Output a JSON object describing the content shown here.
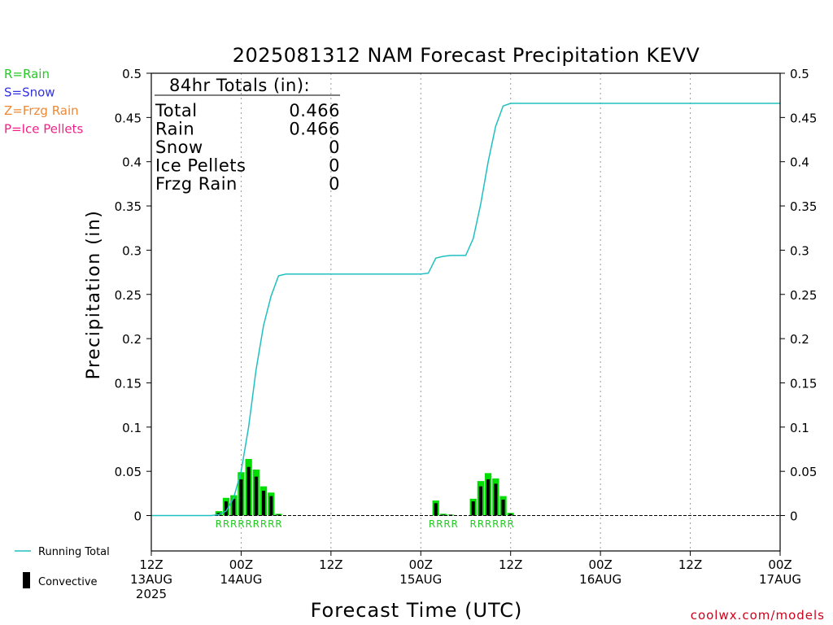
{
  "chart_data": {
    "type": "bar+line",
    "title": "2025081312 NAM Forecast Precipitation KEVV",
    "ylabel": "Precipitation (in)",
    "xlabel": "Forecast Time (UTC)",
    "ylim": [
      -0.04,
      0.5
    ],
    "xlim_hours": [
      0,
      84
    ],
    "y_ticks": [
      0,
      0.05,
      0.1,
      0.15,
      0.2,
      0.25,
      0.3,
      0.35,
      0.4,
      0.45,
      0.5
    ],
    "y_tick_labels": [
      "0",
      "0.05",
      "0.1",
      "0.15",
      "0.2",
      "0.25",
      "0.3",
      "0.35",
      "0.4",
      "0.45",
      "0.5"
    ],
    "x_ticks": [
      {
        "hour": 0,
        "line1": "12Z",
        "line2": "13AUG",
        "line3": "2025"
      },
      {
        "hour": 12,
        "line1": "00Z",
        "line2": "14AUG",
        "line3": ""
      },
      {
        "hour": 24,
        "line1": "12Z",
        "line2": "",
        "line3": ""
      },
      {
        "hour": 36,
        "line1": "00Z",
        "line2": "15AUG",
        "line3": ""
      },
      {
        "hour": 48,
        "line1": "12Z",
        "line2": "",
        "line3": ""
      },
      {
        "hour": 60,
        "line1": "00Z",
        "line2": "16AUG",
        "line3": ""
      },
      {
        "hour": 72,
        "line1": "12Z",
        "line2": "",
        "line3": ""
      },
      {
        "hour": 84,
        "line1": "00Z",
        "line2": "17AUG",
        "line3": ""
      }
    ],
    "gridlines": "vertical dotted",
    "series": [
      {
        "name": "Running Total",
        "kind": "line",
        "color": "#20c0c0",
        "points": [
          [
            0,
            0
          ],
          [
            8,
            0
          ],
          [
            9,
            0.001
          ],
          [
            10,
            0.005
          ],
          [
            11,
            0.02
          ],
          [
            12,
            0.05
          ],
          [
            13,
            0.1
          ],
          [
            14,
            0.165
          ],
          [
            15,
            0.215
          ],
          [
            16,
            0.248
          ],
          [
            17,
            0.271
          ],
          [
            18,
            0.273
          ],
          [
            21,
            0.273
          ],
          [
            24,
            0.273
          ],
          [
            30,
            0.273
          ],
          [
            36,
            0.273
          ],
          [
            37,
            0.274
          ],
          [
            38,
            0.291
          ],
          [
            39,
            0.293
          ],
          [
            40,
            0.294
          ],
          [
            42,
            0.294
          ],
          [
            43,
            0.313
          ],
          [
            44,
            0.352
          ],
          [
            45,
            0.4
          ],
          [
            46,
            0.44
          ],
          [
            47,
            0.463
          ],
          [
            48,
            0.466
          ],
          [
            50,
            0.466
          ],
          [
            84,
            0.466
          ]
        ]
      },
      {
        "name": "Rain",
        "kind": "bar",
        "color": "#00dd00",
        "points": [
          [
            9,
            0.005
          ],
          [
            10,
            0.02
          ],
          [
            11,
            0.023
          ],
          [
            12,
            0.049
          ],
          [
            13,
            0.064
          ],
          [
            14,
            0.052
          ],
          [
            15,
            0.033
          ],
          [
            16,
            0.026
          ],
          [
            17,
            0.002
          ],
          [
            38,
            0.017
          ],
          [
            39,
            0.002
          ],
          [
            40,
            0.001
          ],
          [
            43,
            0.019
          ],
          [
            44,
            0.039
          ],
          [
            45,
            0.048
          ],
          [
            46,
            0.042
          ],
          [
            47,
            0.022
          ],
          [
            48,
            0.003
          ]
        ]
      },
      {
        "name": "Convective",
        "kind": "bar",
        "color": "#000000",
        "points": [
          [
            9,
            0.003
          ],
          [
            10,
            0.016
          ],
          [
            11,
            0.019
          ],
          [
            12,
            0.041
          ],
          [
            13,
            0.055
          ],
          [
            14,
            0.044
          ],
          [
            15,
            0.028
          ],
          [
            16,
            0.022
          ],
          [
            17,
            0.001
          ],
          [
            38,
            0.014
          ],
          [
            39,
            0.001
          ],
          [
            40,
            0.001
          ],
          [
            43,
            0.016
          ],
          [
            44,
            0.033
          ],
          [
            45,
            0.041
          ],
          [
            46,
            0.036
          ],
          [
            47,
            0.018
          ],
          [
            48,
            0.002
          ]
        ]
      }
    ],
    "ptype_labels": [
      {
        "hour": 9,
        "text": "R"
      },
      {
        "hour": 10,
        "text": "R"
      },
      {
        "hour": 11,
        "text": "R"
      },
      {
        "hour": 12,
        "text": "R"
      },
      {
        "hour": 13,
        "text": "R"
      },
      {
        "hour": 14,
        "text": "R"
      },
      {
        "hour": 15,
        "text": "R"
      },
      {
        "hour": 16,
        "text": "R"
      },
      {
        "hour": 17,
        "text": "R"
      },
      {
        "hour": 37.5,
        "text": "R"
      },
      {
        "hour": 38.5,
        "text": "R"
      },
      {
        "hour": 39.5,
        "text": "R"
      },
      {
        "hour": 40.5,
        "text": "R"
      },
      {
        "hour": 43,
        "text": "R"
      },
      {
        "hour": 44,
        "text": "R"
      },
      {
        "hour": 45,
        "text": "R"
      },
      {
        "hour": 46,
        "text": "R"
      },
      {
        "hour": 47,
        "text": "R"
      },
      {
        "hour": 48,
        "text": "R"
      }
    ]
  },
  "ptype_legend": [
    {
      "text": "R=Rain",
      "color": "#22cc22"
    },
    {
      "text": "S=Snow",
      "color": "#3333dd"
    },
    {
      "text": "Z=Frzg Rain",
      "color": "#ee8833"
    },
    {
      "text": "P=Ice Pellets",
      "color": "#ee2288"
    }
  ],
  "totals_box": {
    "header": "84hr Totals (in):",
    "rows": [
      {
        "label": "Total",
        "value": "0.466"
      },
      {
        "label": "Rain",
        "value": "0.466"
      },
      {
        "label": "Snow",
        "value": "0"
      },
      {
        "label": "Ice Pellets",
        "value": "0"
      },
      {
        "label": "Frzg Rain",
        "value": "0"
      }
    ]
  },
  "bottom_legend": {
    "running_total_label": "Running Total",
    "convective_label": "Convective"
  },
  "credit": "coolwx.com/models"
}
